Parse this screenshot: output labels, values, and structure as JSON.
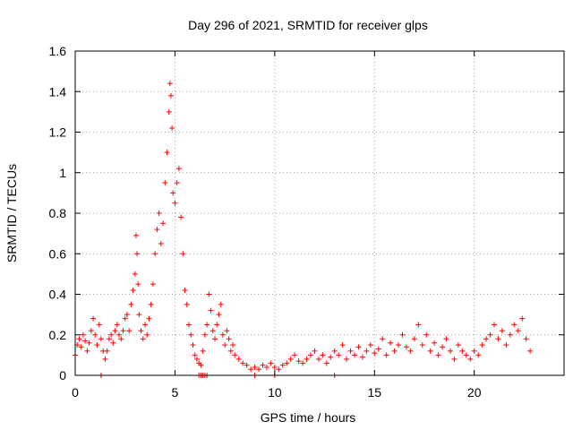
{
  "chart_data": {
    "type": "scatter",
    "title": "Day 296 of 2021, SRMTID for receiver glps",
    "xlabel": "GPS time / hours",
    "ylabel": "SRMTID / TECUs",
    "xlim": [
      0,
      24.5
    ],
    "ylim": [
      0,
      1.6
    ],
    "x_ticks": [
      0,
      5,
      10,
      15,
      20
    ],
    "y_ticks": [
      0,
      0.2,
      0.4,
      0.6,
      0.8,
      1,
      1.2,
      1.4,
      1.6
    ],
    "x_tick_labels": [
      "0",
      "5",
      "10",
      "15",
      "20"
    ],
    "y_tick_labels": [
      "0",
      "0.2",
      "0.4",
      "0.6",
      "0.8",
      "1",
      "1.2",
      "1.4",
      "1.6"
    ],
    "grid": true,
    "marker": "+",
    "series": [
      {
        "name": "SRMTID",
        "color": "#ff0000",
        "x": [
          0.0,
          0.1,
          0.2,
          0.3,
          0.4,
          0.5,
          0.6,
          0.7,
          0.8,
          0.9,
          1.0,
          1.1,
          1.2,
          1.3,
          1.4,
          1.5,
          1.6,
          1.7,
          1.8,
          1.9,
          2.0,
          2.1,
          2.2,
          2.3,
          2.4,
          2.5,
          2.6,
          2.7,
          2.8,
          2.9,
          3.0,
          3.05,
          3.1,
          3.15,
          3.2,
          3.3,
          3.4,
          3.5,
          3.6,
          3.7,
          3.8,
          3.9,
          4.0,
          4.1,
          4.2,
          4.3,
          4.4,
          4.5,
          4.6,
          4.7,
          4.75,
          4.8,
          4.85,
          4.9,
          5.0,
          5.1,
          5.2,
          5.3,
          5.4,
          5.5,
          5.6,
          5.7,
          5.8,
          5.9,
          6.0,
          6.1,
          6.2,
          6.3,
          6.4,
          6.5,
          6.6,
          6.7,
          6.8,
          6.9,
          7.0,
          7.1,
          7.2,
          7.3,
          7.4,
          7.5,
          7.6,
          7.7,
          7.8,
          7.9,
          8.0,
          8.2,
          8.4,
          8.6,
          8.8,
          9.0,
          9.2,
          9.4,
          9.6,
          9.8,
          10.0,
          10.2,
          10.4,
          10.6,
          10.8,
          11.0,
          11.2,
          11.4,
          11.6,
          11.8,
          12.0,
          12.2,
          12.4,
          12.6,
          12.8,
          13.0,
          13.2,
          13.4,
          13.6,
          13.8,
          14.0,
          14.2,
          14.4,
          14.6,
          14.8,
          15.0,
          15.2,
          15.4,
          15.6,
          15.8,
          16.0,
          16.2,
          16.4,
          16.6,
          16.8,
          17.0,
          17.2,
          17.4,
          17.6,
          17.8,
          18.0,
          18.2,
          18.4,
          18.6,
          18.8,
          19.0,
          19.2,
          19.4,
          19.6,
          19.8,
          20.0,
          20.2,
          20.4,
          20.6,
          20.8,
          21.0,
          21.2,
          21.4,
          21.6,
          21.8,
          22.0,
          22.2,
          22.4,
          22.6,
          22.8,
          1.3,
          1.3,
          6.2,
          6.3,
          6.4,
          6.5,
          6.6,
          9.0,
          10.0,
          13.0
        ],
        "y": [
          0.1,
          0.15,
          0.18,
          0.14,
          0.2,
          0.17,
          0.12,
          0.16,
          0.22,
          0.28,
          0.2,
          0.15,
          0.25,
          0.18,
          0.12,
          0.08,
          0.12,
          0.18,
          0.2,
          0.16,
          0.22,
          0.25,
          0.2,
          0.18,
          0.22,
          0.28,
          0.3,
          0.22,
          0.35,
          0.42,
          0.5,
          0.69,
          0.6,
          0.45,
          0.3,
          0.22,
          0.18,
          0.25,
          0.2,
          0.28,
          0.35,
          0.45,
          0.6,
          0.72,
          0.8,
          0.65,
          0.75,
          0.95,
          1.1,
          1.3,
          1.44,
          1.38,
          1.22,
          0.9,
          0.85,
          0.95,
          1.02,
          0.78,
          0.6,
          0.42,
          0.35,
          0.25,
          0.2,
          0.15,
          0.1,
          0.08,
          0.06,
          0.05,
          0.12,
          0.2,
          0.25,
          0.4,
          0.32,
          0.22,
          0.18,
          0.25,
          0.3,
          0.35,
          0.2,
          0.15,
          0.22,
          0.18,
          0.12,
          0.15,
          0.1,
          0.08,
          0.06,
          0.05,
          0.03,
          0.04,
          0.03,
          0.05,
          0.04,
          0.06,
          0.04,
          0.03,
          0.05,
          0.06,
          0.08,
          0.1,
          0.07,
          0.06,
          0.08,
          0.1,
          0.12,
          0.08,
          0.1,
          0.06,
          0.09,
          0.12,
          0.1,
          0.15,
          0.08,
          0.12,
          0.1,
          0.14,
          0.09,
          0.12,
          0.15,
          0.11,
          0.13,
          0.18,
          0.1,
          0.16,
          0.12,
          0.15,
          0.2,
          0.14,
          0.12,
          0.18,
          0.25,
          0.15,
          0.2,
          0.12,
          0.16,
          0.1,
          0.14,
          0.18,
          0.12,
          0.08,
          0.15,
          0.12,
          0.1,
          0.08,
          0.12,
          0.1,
          0.15,
          0.18,
          0.2,
          0.25,
          0.18,
          0.22,
          0.15,
          0.2,
          0.25,
          0.22,
          0.28,
          0.18,
          0.12,
          0.0,
          0.0,
          0.0,
          0.0,
          0.0,
          0.0,
          0.0,
          0.0,
          0.0,
          0.0
        ]
      }
    ]
  }
}
